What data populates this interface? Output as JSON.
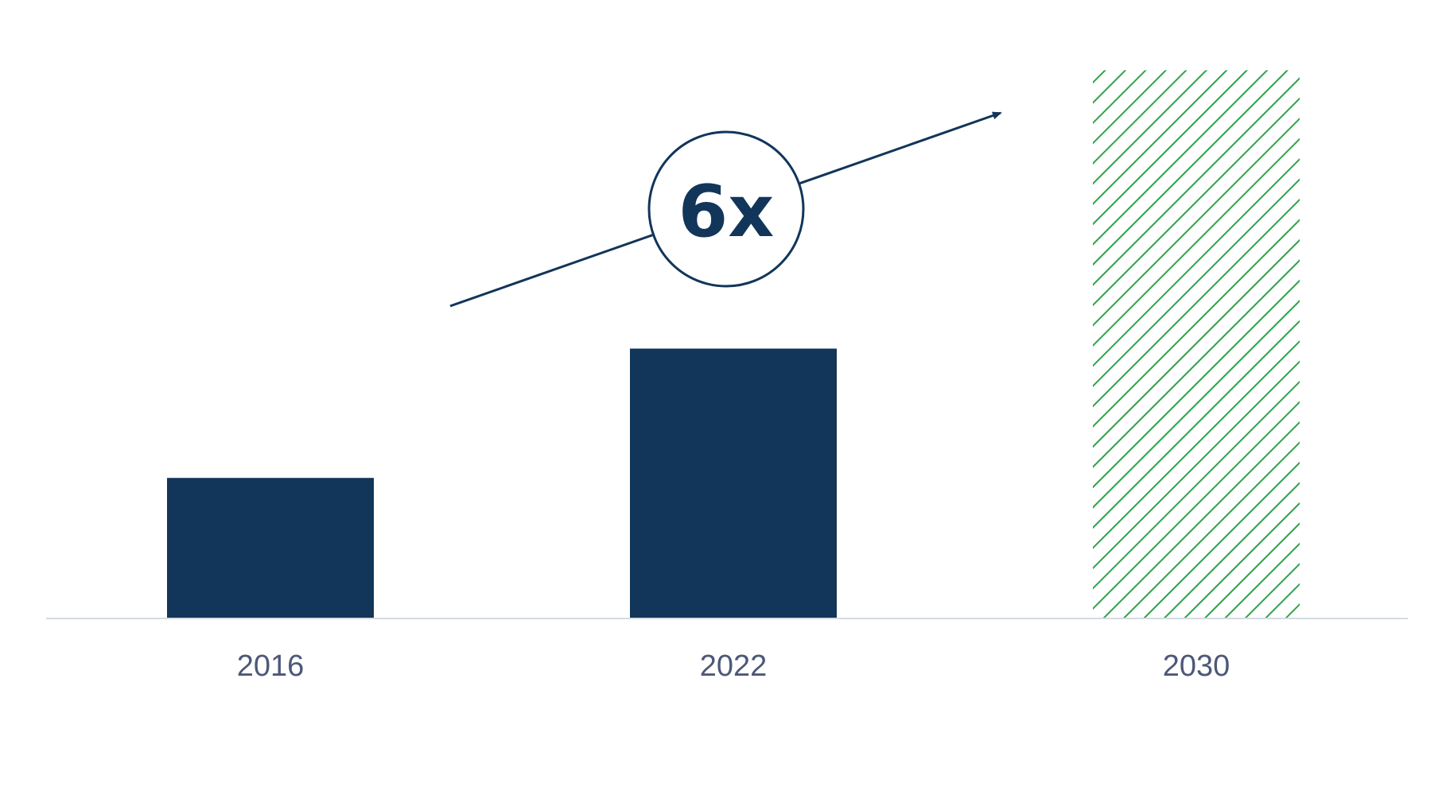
{
  "colors": {
    "bar": "#12355a",
    "projected_hatch": "#2fa24a",
    "axis": "#d5dbe2",
    "tick_label": "#4d5878",
    "annotation": "#12355a",
    "background": "#ffffff"
  },
  "annotation": {
    "label": "6x",
    "icon": "trend-arrow-icon"
  },
  "chart_data": {
    "type": "bar",
    "categories": [
      "2016",
      "2022",
      "2030"
    ],
    "values": [
      1.0,
      1.92,
      3.9
    ],
    "projected": [
      false,
      false,
      true
    ],
    "ylim": [
      0,
      4.4
    ],
    "grid": false,
    "legend": "none"
  }
}
